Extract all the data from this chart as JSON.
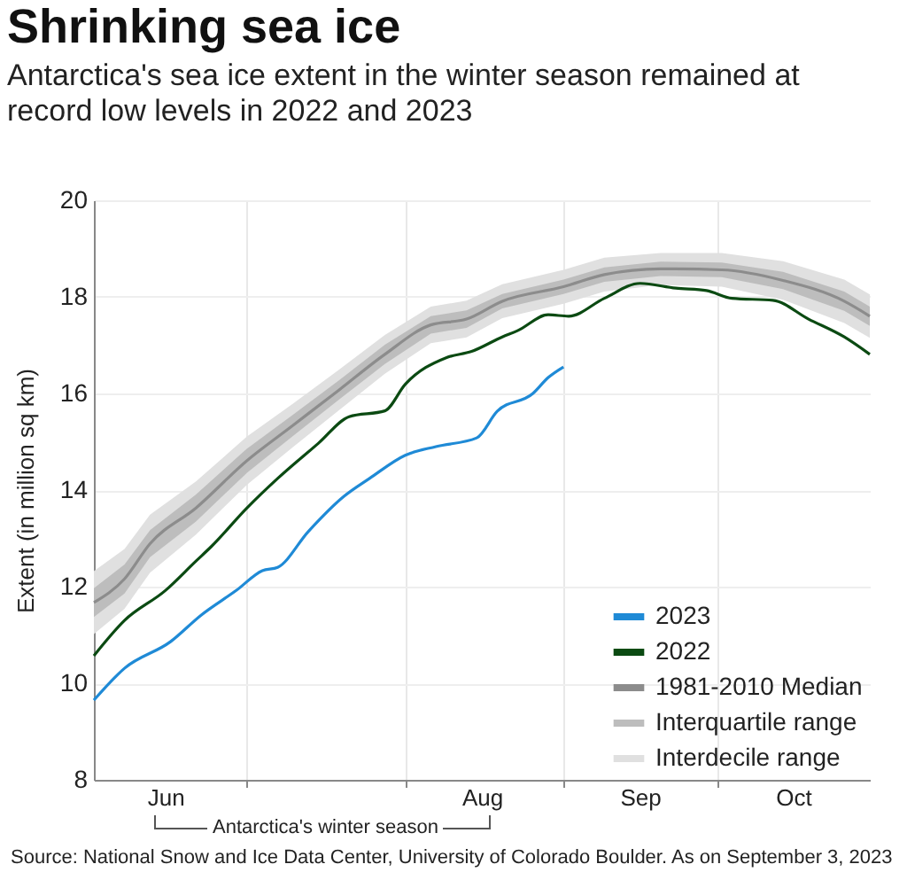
{
  "chart_data": {
    "type": "line",
    "title": "Shrinking sea ice",
    "subtitle": "Antarctica's sea ice extent in the winter season remained at record low levels in 2022 and 2023",
    "ylabel": "Extent (in million sq km)",
    "annotations": [
      "Antarctica's winter season",
      "Source: National Snow and Ice Data Center, University of Colorado Boulder. As on September 3, 2023"
    ],
    "xlim": [
      "--06-01",
      "--10-31"
    ],
    "ylim": [
      8,
      20
    ],
    "yticks": [
      8,
      10,
      12,
      14,
      16,
      18,
      20
    ],
    "xticks": [
      {
        "value": "--06-15",
        "label": "Jun"
      },
      {
        "value": "--07-01",
        "label": null
      },
      {
        "value": "--08-01",
        "label": null
      },
      {
        "value": "--08-16",
        "label": "Aug"
      },
      {
        "value": "--09-01",
        "label": null
      },
      {
        "value": "--09-16",
        "label": "Sep"
      },
      {
        "value": "--10-01",
        "label": null
      },
      {
        "value": "--10-16",
        "label": "Oct"
      }
    ],
    "grid": true,
    "legend": "bottom right",
    "series": [
      {
        "name": "2023",
        "color": "#1f8ad6",
        "x": [
          "--06-01",
          "--06-07",
          "--06-16",
          "--06-22",
          "--06-29",
          "--07-04",
          "--07-07",
          "--07-13",
          "--07-20",
          "--07-25",
          "--08-01",
          "--08-07",
          "--08-15",
          "--08-19",
          "--08-26",
          "--08-29",
          "--09-01"
        ],
        "values": [
          9.65,
          10.31,
          10.86,
          11.41,
          11.93,
          12.33,
          12.4,
          13.14,
          13.87,
          14.24,
          14.72,
          14.9,
          15.08,
          15.63,
          16.0,
          16.33,
          16.55
        ]
      },
      {
        "name": "2022",
        "color": "#0b4a12",
        "x": [
          "--06-01",
          "--06-07",
          "--06-15",
          "--06-21",
          "--06-24",
          "--07-01",
          "--07-07",
          "--07-15",
          "--07-21",
          "--07-28",
          "--08-01",
          "--08-09",
          "--08-14",
          "--08-20",
          "--08-23",
          "--08-29",
          "--09-02",
          "--09-09",
          "--09-16",
          "--09-23",
          "--09-29",
          "--10-04",
          "--10-12",
          "--10-19",
          "--10-26",
          "--10-31"
        ],
        "values": [
          10.57,
          11.3,
          11.92,
          12.53,
          12.83,
          13.63,
          14.24,
          14.97,
          15.52,
          15.64,
          16.19,
          16.74,
          16.87,
          17.17,
          17.3,
          17.63,
          17.6,
          17.97,
          18.28,
          18.18,
          18.13,
          17.97,
          17.93,
          17.54,
          17.17,
          16.81
        ]
      },
      {
        "name": "1981-2010 Median",
        "color": "#8c8c8c",
        "x": [
          "--06-01",
          "--06-07",
          "--06-12",
          "--06-21",
          "--07-01",
          "--07-10",
          "--07-19",
          "--07-28",
          "--08-06",
          "--08-13",
          "--08-20",
          "--09-01",
          "--09-09",
          "--09-20",
          "--10-02",
          "--10-14",
          "--10-26",
          "--10-31"
        ],
        "values": [
          11.67,
          12.16,
          12.89,
          13.63,
          14.61,
          15.34,
          16.07,
          16.81,
          17.42,
          17.54,
          17.91,
          18.21,
          18.46,
          18.58,
          18.56,
          18.34,
          17.91,
          17.6
        ]
      },
      {
        "name": "Interquartile range",
        "type": "area",
        "color": "#bdbdbd",
        "x": [
          "--06-01",
          "--06-07",
          "--06-12",
          "--06-21",
          "--07-01",
          "--07-10",
          "--07-19",
          "--07-28",
          "--08-06",
          "--08-13",
          "--08-20",
          "--09-01",
          "--09-09",
          "--09-20",
          "--10-02",
          "--10-14",
          "--10-26",
          "--10-31"
        ],
        "values": [
          null,
          null,
          null,
          null,
          null,
          null,
          null,
          null,
          null,
          null,
          null,
          null,
          null,
          null,
          null,
          null,
          null,
          null
        ],
        "lower": [
          11.37,
          11.86,
          12.61,
          13.35,
          14.36,
          15.12,
          15.87,
          16.61,
          17.24,
          17.36,
          17.76,
          18.06,
          18.31,
          18.43,
          18.41,
          18.16,
          17.71,
          17.4
        ],
        "upper": [
          11.97,
          12.46,
          13.17,
          13.91,
          14.86,
          15.56,
          16.27,
          17.01,
          17.6,
          17.72,
          18.06,
          18.36,
          18.61,
          18.73,
          18.71,
          18.52,
          18.11,
          17.8
        ]
      },
      {
        "name": "Interdecile range",
        "type": "area",
        "color": "#e0e0e0",
        "x": [
          "--06-01",
          "--06-07",
          "--06-12",
          "--06-21",
          "--07-01",
          "--07-10",
          "--07-19",
          "--07-28",
          "--08-06",
          "--08-13",
          "--08-20",
          "--09-01",
          "--09-09",
          "--09-20",
          "--10-02",
          "--10-14",
          "--10-26",
          "--10-31"
        ],
        "values": [
          null,
          null,
          null,
          null,
          null,
          null,
          null,
          null,
          null,
          null,
          null,
          null,
          null,
          null,
          null,
          null,
          null,
          null
        ],
        "lower": [
          11.02,
          11.54,
          12.29,
          13.08,
          14.11,
          14.89,
          15.65,
          16.41,
          17.04,
          17.16,
          17.56,
          17.86,
          18.11,
          18.25,
          18.21,
          17.94,
          17.46,
          17.15
        ],
        "upper": [
          12.32,
          12.78,
          13.49,
          14.18,
          15.11,
          15.79,
          16.49,
          17.21,
          17.8,
          17.92,
          18.26,
          18.56,
          18.81,
          18.91,
          18.91,
          18.74,
          18.36,
          18.05
        ]
      }
    ]
  }
}
